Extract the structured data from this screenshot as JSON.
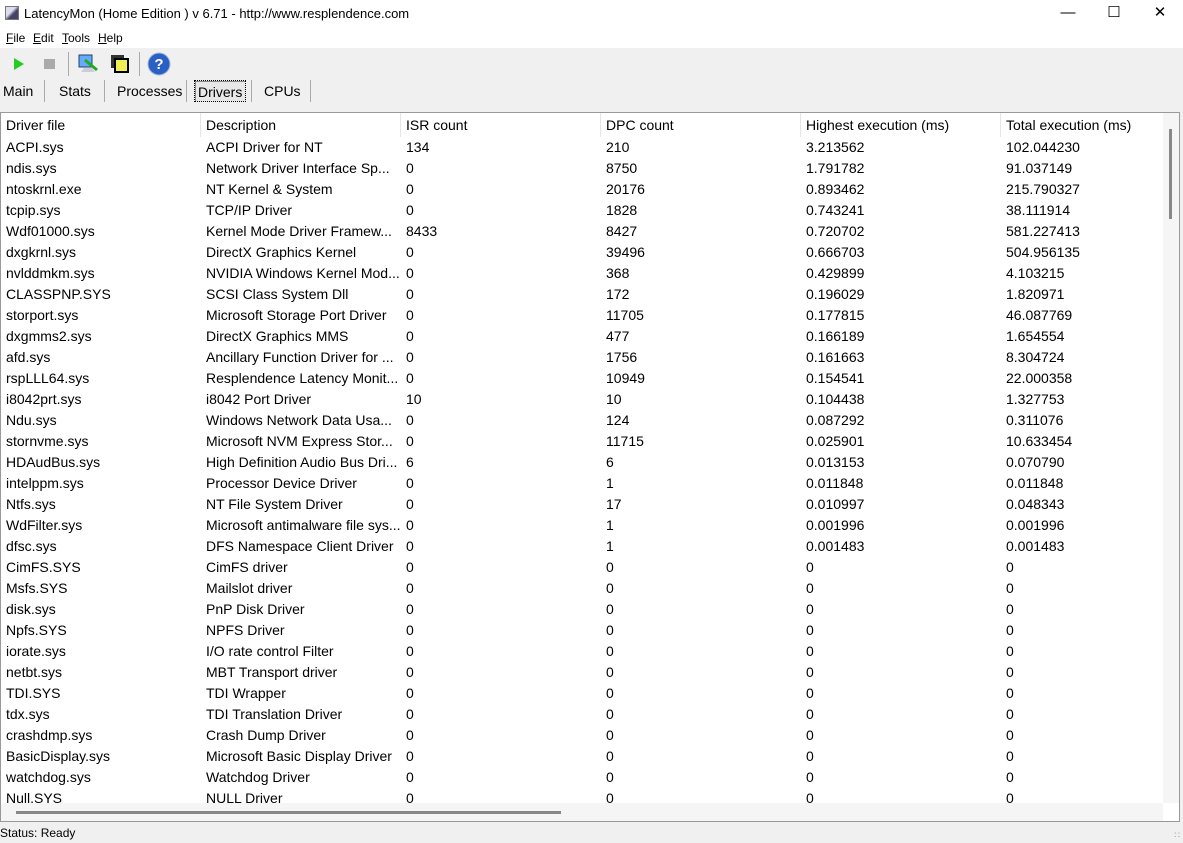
{
  "window": {
    "title": "LatencyMon  (Home Edition )  v 6.71 - http://www.resplendence.com"
  },
  "menu": [
    {
      "label": "File",
      "u": "F",
      "rest": "ile"
    },
    {
      "label": "Edit",
      "u": "E",
      "rest": "dit"
    },
    {
      "label": "Tools",
      "u": "T",
      "rest": "ools"
    },
    {
      "label": "Help",
      "u": "H",
      "rest": "elp"
    }
  ],
  "toolbar": {
    "icons": [
      "play-icon",
      "stop-icon",
      "analyze-icon",
      "windows-icon",
      "help-icon"
    ]
  },
  "tabs": [
    {
      "label": "Main"
    },
    {
      "label": "Stats"
    },
    {
      "label": "Processes"
    },
    {
      "label": "Drivers",
      "active": true
    },
    {
      "label": "CPUs"
    }
  ],
  "columns": [
    "Driver file",
    "Description",
    "ISR count",
    "DPC count",
    "Highest execution (ms)",
    "Total execution (ms)"
  ],
  "rows": [
    [
      "ACPI.sys",
      "ACPI Driver for NT",
      "134",
      "210",
      "3.213562",
      "102.044230"
    ],
    [
      "ndis.sys",
      "Network Driver Interface Sp...",
      "0",
      "8750",
      "1.791782",
      "91.037149"
    ],
    [
      "ntoskrnl.exe",
      "NT Kernel & System",
      "0",
      "20176",
      "0.893462",
      "215.790327"
    ],
    [
      "tcpip.sys",
      "TCP/IP Driver",
      "0",
      "1828",
      "0.743241",
      "38.111914"
    ],
    [
      "Wdf01000.sys",
      "Kernel Mode Driver Framew...",
      "8433",
      "8427",
      "0.720702",
      "581.227413"
    ],
    [
      "dxgkrnl.sys",
      "DirectX Graphics Kernel",
      "0",
      "39496",
      "0.666703",
      "504.956135"
    ],
    [
      "nvlddmkm.sys",
      "NVIDIA Windows Kernel Mod...",
      "0",
      "368",
      "0.429899",
      "4.103215"
    ],
    [
      "CLASSPNP.SYS",
      "SCSI Class System Dll",
      "0",
      "172",
      "0.196029",
      "1.820971"
    ],
    [
      "storport.sys",
      "Microsoft Storage Port Driver",
      "0",
      "11705",
      "0.177815",
      "46.087769"
    ],
    [
      "dxgmms2.sys",
      "DirectX Graphics MMS",
      "0",
      "477",
      "0.166189",
      "1.654554"
    ],
    [
      "afd.sys",
      "Ancillary Function Driver for ...",
      "0",
      "1756",
      "0.161663",
      "8.304724"
    ],
    [
      "rspLLL64.sys",
      "Resplendence Latency Monit...",
      "0",
      "10949",
      "0.154541",
      "22.000358"
    ],
    [
      "i8042prt.sys",
      "i8042 Port Driver",
      "10",
      "10",
      "0.104438",
      "1.327753"
    ],
    [
      "Ndu.sys",
      "Windows Network Data Usa...",
      "0",
      "124",
      "0.087292",
      "0.311076"
    ],
    [
      "stornvme.sys",
      "Microsoft NVM Express Stor...",
      "0",
      "11715",
      "0.025901",
      "10.633454"
    ],
    [
      "HDAudBus.sys",
      "High Definition Audio Bus Dri...",
      "6",
      "6",
      "0.013153",
      "0.070790"
    ],
    [
      "intelppm.sys",
      "Processor Device Driver",
      "0",
      "1",
      "0.011848",
      "0.011848"
    ],
    [
      "Ntfs.sys",
      "NT File System Driver",
      "0",
      "17",
      "0.010997",
      "0.048343"
    ],
    [
      "WdFilter.sys",
      "Microsoft antimalware file sys...",
      "0",
      "1",
      "0.001996",
      "0.001996"
    ],
    [
      "dfsc.sys",
      "DFS Namespace Client Driver",
      "0",
      "1",
      "0.001483",
      "0.001483"
    ],
    [
      "CimFS.SYS",
      "CimFS driver",
      "0",
      "0",
      "0",
      "0"
    ],
    [
      "Msfs.SYS",
      "Mailslot driver",
      "0",
      "0",
      "0",
      "0"
    ],
    [
      "disk.sys",
      "PnP Disk Driver",
      "0",
      "0",
      "0",
      "0"
    ],
    [
      "Npfs.SYS",
      "NPFS Driver",
      "0",
      "0",
      "0",
      "0"
    ],
    [
      "iorate.sys",
      "I/O rate control Filter",
      "0",
      "0",
      "0",
      "0"
    ],
    [
      "netbt.sys",
      "MBT Transport driver",
      "0",
      "0",
      "0",
      "0"
    ],
    [
      "TDI.SYS",
      "TDI Wrapper",
      "0",
      "0",
      "0",
      "0"
    ],
    [
      "tdx.sys",
      "TDI Translation Driver",
      "0",
      "0",
      "0",
      "0"
    ],
    [
      "crashdmp.sys",
      "Crash Dump Driver",
      "0",
      "0",
      "0",
      "0"
    ],
    [
      "BasicDisplay.sys",
      "Microsoft Basic Display Driver",
      "0",
      "0",
      "0",
      "0"
    ],
    [
      "watchdog.sys",
      "Watchdog Driver",
      "0",
      "0",
      "0",
      "0"
    ],
    [
      "Null.SYS",
      "NULL Driver",
      "0",
      "0",
      "0",
      "0"
    ]
  ],
  "status": "Status: Ready"
}
